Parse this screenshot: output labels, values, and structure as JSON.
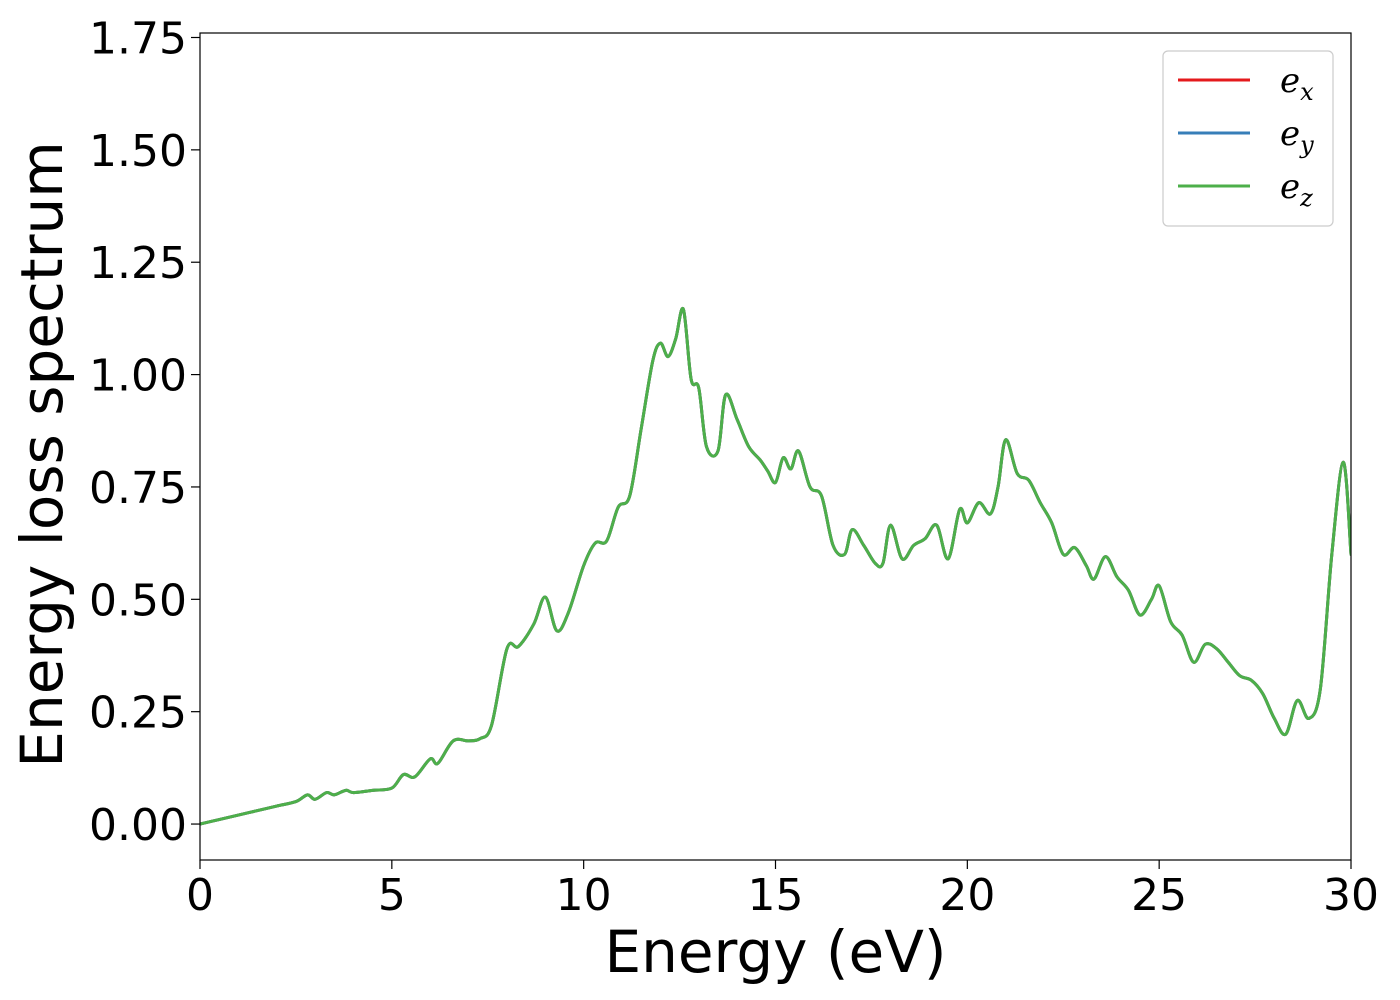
{
  "chart_data": {
    "type": "line",
    "xlabel": "Energy (eV)",
    "ylabel": "Energy loss spectrum",
    "xlim": [
      0,
      30
    ],
    "ylim": [
      -0.08,
      1.76
    ],
    "xticks": [
      0,
      5,
      10,
      15,
      20,
      25,
      30
    ],
    "yticks": [
      0.0,
      0.25,
      0.5,
      0.75,
      1.0,
      1.25,
      1.5,
      1.75
    ],
    "ytick_labels": [
      "0.00",
      "0.25",
      "0.50",
      "0.75",
      "1.00",
      "1.25",
      "1.50",
      "1.75"
    ],
    "grid": false,
    "legend_position": "top-right",
    "x": [
      0.0,
      0.5,
      1.0,
      1.5,
      2.0,
      2.5,
      2.8,
      3.0,
      3.3,
      3.5,
      3.8,
      4.0,
      4.5,
      5.0,
      5.3,
      5.6,
      6.0,
      6.2,
      6.6,
      7.0,
      7.3,
      7.6,
      8.0,
      8.3,
      8.7,
      9.0,
      9.3,
      9.6,
      10.0,
      10.3,
      10.6,
      10.9,
      11.2,
      11.5,
      11.8,
      12.0,
      12.2,
      12.4,
      12.6,
      12.8,
      13.0,
      13.2,
      13.5,
      13.7,
      14.0,
      14.3,
      14.6,
      14.8,
      15.0,
      15.2,
      15.4,
      15.6,
      15.9,
      16.2,
      16.5,
      16.8,
      17.0,
      17.3,
      17.6,
      17.8,
      18.0,
      18.3,
      18.6,
      18.9,
      19.2,
      19.5,
      19.8,
      20.0,
      20.3,
      20.6,
      20.8,
      21.0,
      21.3,
      21.6,
      21.9,
      22.2,
      22.5,
      22.8,
      23.1,
      23.3,
      23.6,
      23.9,
      24.2,
      24.5,
      24.8,
      25.0,
      25.3,
      25.6,
      25.9,
      26.2,
      26.5,
      26.8,
      27.1,
      27.4,
      27.7,
      28.0,
      28.3,
      28.6,
      28.9,
      29.2,
      29.5,
      29.8,
      30.0
    ],
    "series": [
      {
        "name": "e_x",
        "label_main": "e",
        "label_sub": "x",
        "color": "#e41a1c",
        "values": [
          0.0,
          0.01,
          0.02,
          0.03,
          0.04,
          0.05,
          0.065,
          0.055,
          0.07,
          0.065,
          0.075,
          0.07,
          0.075,
          0.08,
          0.11,
          0.105,
          0.145,
          0.135,
          0.185,
          0.185,
          0.19,
          0.22,
          0.39,
          0.395,
          0.445,
          0.505,
          0.43,
          0.47,
          0.575,
          0.625,
          0.63,
          0.705,
          0.73,
          0.88,
          1.03,
          1.07,
          1.04,
          1.08,
          1.145,
          0.99,
          0.97,
          0.84,
          0.83,
          0.955,
          0.9,
          0.84,
          0.81,
          0.785,
          0.76,
          0.815,
          0.79,
          0.83,
          0.75,
          0.73,
          0.62,
          0.6,
          0.655,
          0.62,
          0.58,
          0.58,
          0.665,
          0.59,
          0.62,
          0.635,
          0.665,
          0.59,
          0.7,
          0.67,
          0.715,
          0.69,
          0.75,
          0.855,
          0.78,
          0.765,
          0.715,
          0.67,
          0.6,
          0.615,
          0.575,
          0.545,
          0.595,
          0.55,
          0.52,
          0.465,
          0.5,
          0.53,
          0.45,
          0.42,
          0.36,
          0.4,
          0.39,
          0.36,
          0.33,
          0.32,
          0.29,
          0.235,
          0.2,
          0.275,
          0.235,
          0.3,
          0.6,
          0.805,
          0.6
        ]
      },
      {
        "name": "e_y",
        "label_main": "e",
        "label_sub": "y",
        "color": "#377eb8",
        "values": [
          0.0,
          0.01,
          0.02,
          0.03,
          0.04,
          0.05,
          0.065,
          0.055,
          0.07,
          0.065,
          0.075,
          0.07,
          0.075,
          0.08,
          0.11,
          0.105,
          0.145,
          0.135,
          0.185,
          0.185,
          0.19,
          0.22,
          0.39,
          0.395,
          0.445,
          0.505,
          0.43,
          0.47,
          0.575,
          0.625,
          0.63,
          0.705,
          0.73,
          0.88,
          1.03,
          1.07,
          1.04,
          1.08,
          1.145,
          0.99,
          0.97,
          0.84,
          0.83,
          0.955,
          0.9,
          0.84,
          0.81,
          0.785,
          0.76,
          0.815,
          0.79,
          0.83,
          0.75,
          0.73,
          0.62,
          0.6,
          0.655,
          0.62,
          0.58,
          0.58,
          0.665,
          0.59,
          0.62,
          0.635,
          0.665,
          0.59,
          0.7,
          0.67,
          0.715,
          0.69,
          0.75,
          0.855,
          0.78,
          0.765,
          0.715,
          0.67,
          0.6,
          0.615,
          0.575,
          0.545,
          0.595,
          0.55,
          0.52,
          0.465,
          0.5,
          0.53,
          0.45,
          0.42,
          0.36,
          0.4,
          0.39,
          0.36,
          0.33,
          0.32,
          0.29,
          0.235,
          0.2,
          0.275,
          0.235,
          0.3,
          0.6,
          0.805,
          0.6
        ]
      },
      {
        "name": "e_z",
        "label_main": "e",
        "label_sub": "z",
        "color": "#4daf4a",
        "values": [
          0.0,
          0.01,
          0.02,
          0.03,
          0.04,
          0.05,
          0.065,
          0.055,
          0.07,
          0.065,
          0.075,
          0.07,
          0.075,
          0.08,
          0.11,
          0.105,
          0.145,
          0.135,
          0.185,
          0.185,
          0.19,
          0.22,
          0.39,
          0.395,
          0.445,
          0.505,
          0.43,
          0.47,
          0.575,
          0.625,
          0.63,
          0.705,
          0.73,
          0.88,
          1.03,
          1.07,
          1.04,
          1.08,
          1.145,
          0.99,
          0.97,
          0.84,
          0.83,
          0.955,
          0.9,
          0.84,
          0.81,
          0.785,
          0.76,
          0.815,
          0.79,
          0.83,
          0.75,
          0.73,
          0.62,
          0.6,
          0.655,
          0.62,
          0.58,
          0.58,
          0.665,
          0.59,
          0.62,
          0.635,
          0.665,
          0.59,
          0.7,
          0.67,
          0.715,
          0.69,
          0.75,
          0.855,
          0.78,
          0.765,
          0.715,
          0.67,
          0.6,
          0.615,
          0.575,
          0.545,
          0.595,
          0.55,
          0.52,
          0.465,
          0.5,
          0.53,
          0.45,
          0.42,
          0.36,
          0.4,
          0.39,
          0.36,
          0.33,
          0.32,
          0.29,
          0.235,
          0.2,
          0.275,
          0.235,
          0.3,
          0.6,
          0.805,
          0.6
        ]
      }
    ]
  }
}
